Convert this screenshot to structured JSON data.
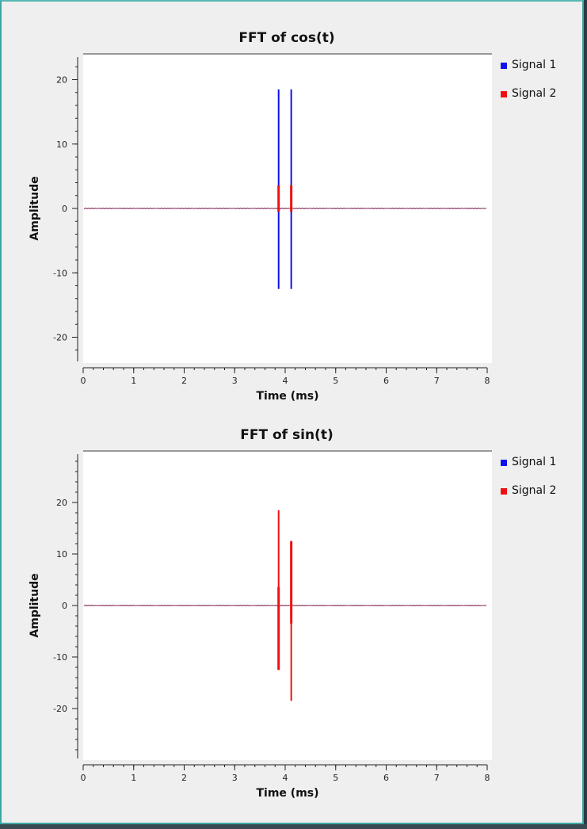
{
  "window": {
    "title": ""
  },
  "legend": [
    {
      "name": "Signal 1",
      "color": "#1010ee"
    },
    {
      "name": "Signal 2",
      "color": "#ee1010"
    }
  ],
  "chart_data": [
    {
      "type": "line",
      "title": "FFT of cos(t)",
      "xlabel": "Time (ms)",
      "ylabel": "Amplitude",
      "xlim": [
        0,
        8
      ],
      "ylim": [
        -24,
        24
      ],
      "xticks": [
        "0",
        "1",
        "2",
        "3",
        "4",
        "5",
        "6",
        "7",
        "8"
      ],
      "yticks": [
        "20",
        "10",
        "0",
        "-10",
        "-20"
      ],
      "series": [
        {
          "name": "Signal 1",
          "color": "#1010ee",
          "spikes": [
            {
              "x": 3.87,
              "min": -12.5,
              "max": 18.5
            },
            {
              "x": 4.12,
              "min": -12.5,
              "max": 18.5
            }
          ]
        },
        {
          "name": "Signal 2",
          "color": "#ee1010",
          "spikes": [
            {
              "x": 3.87,
              "min": -0.5,
              "max": 3.6
            },
            {
              "x": 4.12,
              "min": -0.5,
              "max": 3.6
            }
          ]
        }
      ],
      "baseline": 0
    },
    {
      "type": "line",
      "title": "FFT of sin(t)",
      "xlabel": "Time (ms)",
      "ylabel": "Amplitude",
      "xlim": [
        0,
        8
      ],
      "ylim": [
        -30,
        30
      ],
      "xticks": [
        "0",
        "1",
        "2",
        "3",
        "4",
        "5",
        "6",
        "7",
        "8"
      ],
      "yticks": [
        "20",
        "10",
        "0",
        "-10",
        "-20"
      ],
      "series": [
        {
          "name": "Signal 2",
          "color": "#ee1010",
          "spikes": [
            {
              "x": 3.87,
              "min": -12.5,
              "max": 18.5
            },
            {
              "x": 4.12,
              "min": -18.5,
              "max": 12.5
            }
          ]
        },
        {
          "name": "Signal 1",
          "color": "#1010ee",
          "spikes": []
        }
      ],
      "baseline": 0
    }
  ]
}
